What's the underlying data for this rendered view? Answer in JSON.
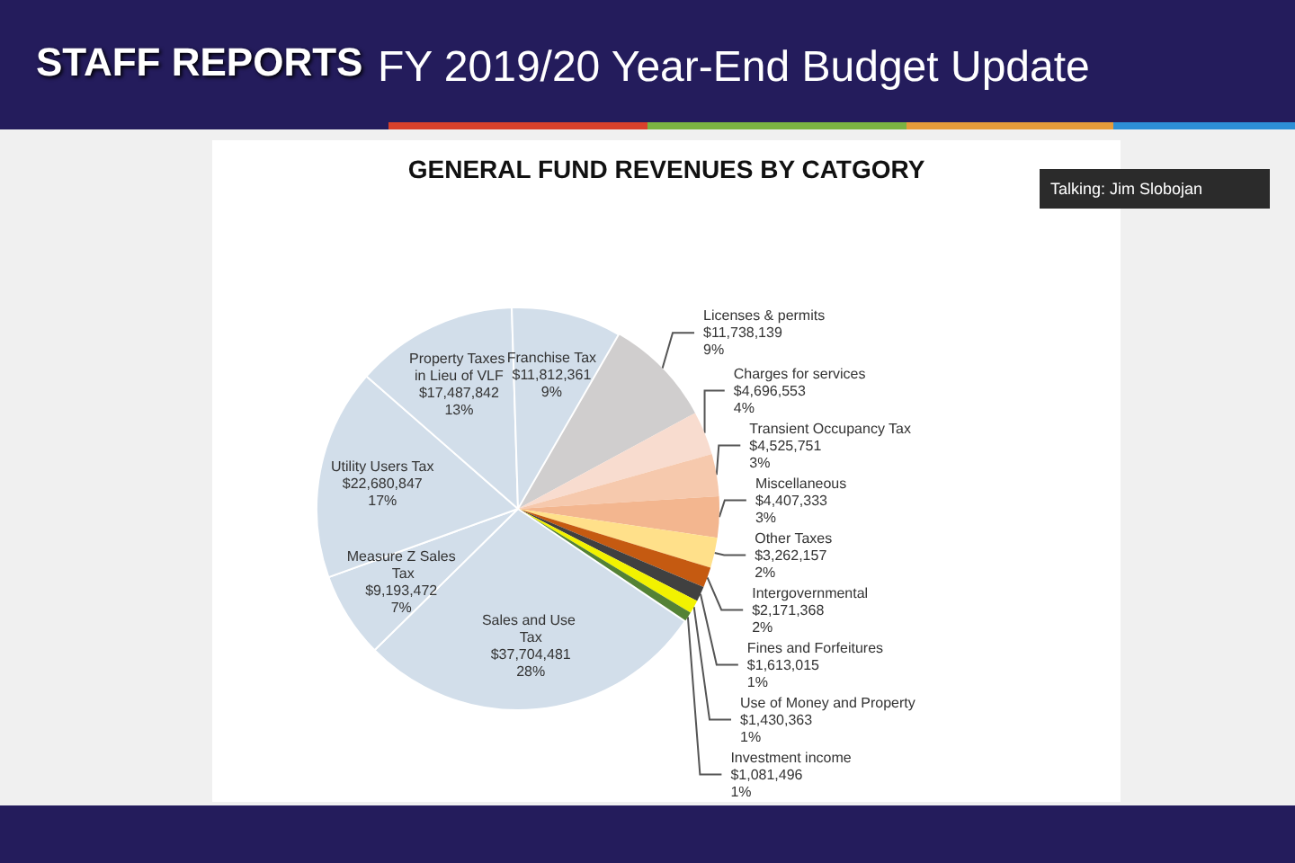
{
  "chart_data": {
    "type": "pie",
    "title": "GENERAL FUND REVENUES BY CATGORY",
    "annotations": [
      "STAFF REPORTS",
      "FY 2019/20 Year-End Budget Update",
      "Talking: Jim Slobojan"
    ],
    "categories": [
      "Licenses & permits",
      "Charges for services",
      "Transient Occupancy Tax",
      "Miscellaneous",
      "Other Taxes",
      "Intergovernmental",
      "Fines and Forfeitures",
      "Use of Money and Property",
      "Investment income",
      "Sales and Use Tax",
      "Measure Z Sales Tax",
      "Utility Users Tax",
      "Property Taxes in Lieu of VLF",
      "Franchise Tax"
    ],
    "values": [
      11738139,
      4696553,
      4525751,
      4407333,
      3262157,
      2171368,
      1613015,
      1430363,
      1081496,
      37704481,
      9193472,
      22680847,
      17487842,
      11812361
    ],
    "value_labels": [
      "$11,738,139\n9%",
      "$4,696,553\n4%",
      "$4,525,751\n3%",
      "$4,407,333\n3%",
      "$3,262,157\n2%",
      "$2,171,368\n2%",
      "$1,613,015\n1%",
      "$1,430,363\n1%",
      "$1,081,496\n1%",
      "$37,704,481\n28%",
      "$9,193,472\n7%",
      "$22,680,847\n17%",
      "$17,487,842\n13%",
      "$11,812,361\n9%"
    ],
    "colors": [
      "#d0cece",
      "#f8dccf",
      "#f6c9ad",
      "#f3b68f",
      "#ffe08a",
      "#c55a11",
      "#404040",
      "#f2f200",
      "#548235",
      "#d2deea",
      "#d2deea",
      "#d2deea",
      "#d2deea",
      "#d2deea"
    ],
    "legend": false
  }
}
